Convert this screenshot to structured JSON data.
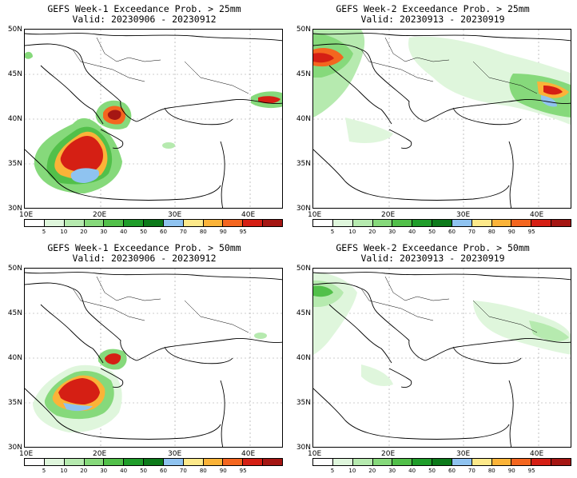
{
  "panels": [
    {
      "title": "GEFS Week-1 Exceedance Prob. > 25mm",
      "valid": "Valid: 20230906 - 20230912"
    },
    {
      "title": "GEFS Week-2 Exceedance Prob. > 25mm",
      "valid": "Valid: 20230913 - 20230919"
    },
    {
      "title": "GEFS Week-1 Exceedance Prob. > 50mm",
      "valid": "Valid: 20230906 - 20230912"
    },
    {
      "title": "GEFS Week-2 Exceedance Prob. > 50mm",
      "valid": "Valid: 20230913 - 20230919"
    }
  ],
  "axes": {
    "lat_labels": [
      "50N",
      "45N",
      "40N",
      "35N",
      "30N"
    ],
    "lon_labels": [
      "10E",
      "20E",
      "30E",
      "40E"
    ]
  },
  "legend": {
    "labels": [
      "5",
      "10",
      "20",
      "30",
      "40",
      "50",
      "60",
      "70",
      "80",
      "90",
      "95"
    ],
    "colors": [
      "#ffffff",
      "#dff6dc",
      "#b6eaaf",
      "#86d97b",
      "#52c04a",
      "#1f9d2a",
      "#0c7a1a",
      "#8fc3f0",
      "#fde98a",
      "#fbb338",
      "#f4661f",
      "#d51f14",
      "#a51613"
    ]
  }
}
